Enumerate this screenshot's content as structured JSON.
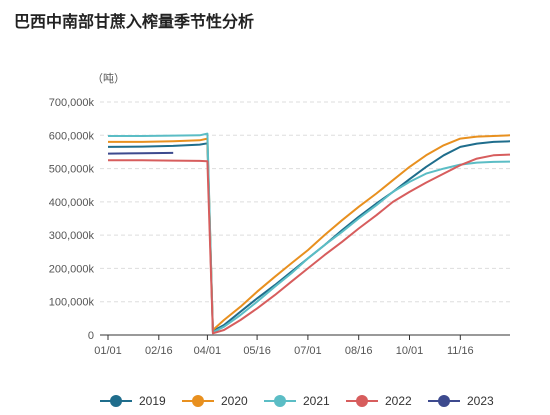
{
  "chart_data": {
    "type": "line",
    "title": "巴西中南部甘蔗入榨量季节性分析",
    "ylabel": "（吨）",
    "xlabel": "",
    "ylim": [
      0,
      700000
    ],
    "yticks": [
      0,
      100000,
      200000,
      300000,
      400000,
      500000,
      600000,
      700000
    ],
    "ytick_labels": [
      "0",
      "100,000k",
      "200,000k",
      "300,000k",
      "400,000k",
      "500,000k",
      "600,000k",
      "700,000k"
    ],
    "xlim": [
      "01/01",
      "12/31"
    ],
    "xticks": [
      "01/01",
      "02/16",
      "04/01",
      "05/16",
      "07/01",
      "08/16",
      "10/01",
      "11/16"
    ],
    "grid": "horizontal dashed",
    "legend_position": "bottom",
    "x": [
      "01/01",
      "02/01",
      "03/01",
      "03/25",
      "04/01",
      "04/06",
      "04/16",
      "05/01",
      "05/16",
      "06/01",
      "06/16",
      "07/01",
      "07/16",
      "08/01",
      "08/16",
      "09/01",
      "09/16",
      "10/01",
      "10/16",
      "11/01",
      "11/16",
      "12/01",
      "12/16",
      "12/31"
    ],
    "series": [
      {
        "name": "2019",
        "color": "#1f6d8c",
        "values": [
          565000,
          566000,
          568000,
          572000,
          576000,
          12000,
          30000,
          70000,
          110000,
          150000,
          190000,
          230000,
          270000,
          315000,
          355000,
          395000,
          430000,
          468000,
          505000,
          540000,
          565000,
          575000,
          580000,
          582000
        ]
      },
      {
        "name": "2020",
        "color": "#e8901f",
        "values": [
          580000,
          580000,
          582000,
          585000,
          590000,
          15000,
          45000,
          85000,
          130000,
          175000,
          215000,
          255000,
          300000,
          345000,
          385000,
          425000,
          465000,
          505000,
          540000,
          570000,
          590000,
          596000,
          598000,
          600000
        ]
      },
      {
        "name": "2021",
        "color": "#5bbdc5",
        "values": [
          598000,
          598000,
          599000,
          600000,
          605000,
          8000,
          25000,
          60000,
          100000,
          145000,
          185000,
          230000,
          270000,
          310000,
          350000,
          390000,
          430000,
          460000,
          485000,
          500000,
          512000,
          518000,
          520000,
          521000
        ]
      },
      {
        "name": "2022",
        "color": "#d75d5d",
        "values": [
          525000,
          525000,
          524000,
          523000,
          522000,
          5000,
          15000,
          45000,
          80000,
          120000,
          160000,
          200000,
          240000,
          280000,
          320000,
          360000,
          400000,
          430000,
          458000,
          485000,
          510000,
          530000,
          540000,
          542000
        ]
      },
      {
        "name": "2023",
        "color": "#3d4a8e",
        "values": [
          545000,
          546000,
          547000,
          null,
          null,
          null,
          null,
          null,
          null,
          null,
          null,
          null,
          null,
          null,
          null,
          null,
          null,
          null,
          null,
          null,
          null,
          null,
          null,
          null
        ]
      }
    ]
  }
}
